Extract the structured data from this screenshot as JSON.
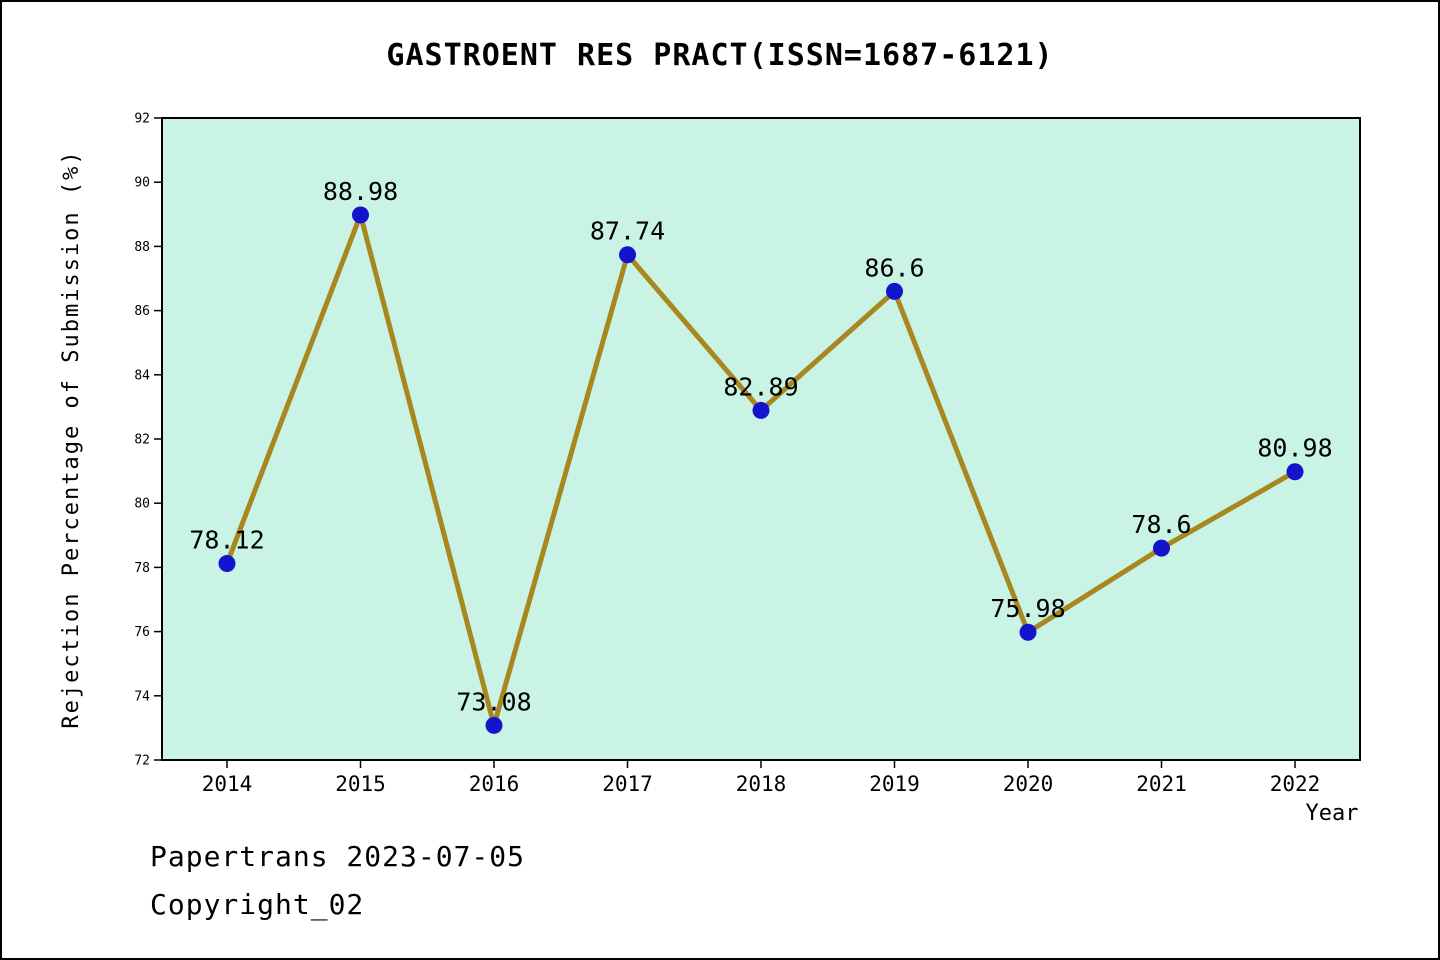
{
  "title": "GASTROENT RES PRACT(ISSN=1687-6121)",
  "footer": {
    "line1": "Papertrans 2023-07-05",
    "line2": "Copyright_02"
  },
  "chart_data": {
    "type": "line",
    "title": "GASTROENT RES PRACT(ISSN=1687-6121)",
    "xlabel": "Year",
    "ylabel": "Rejection Percentage of Submission (%)",
    "categories": [
      "2014",
      "2015",
      "2016",
      "2017",
      "2018",
      "2019",
      "2020",
      "2021",
      "2022"
    ],
    "values": [
      78.12,
      88.98,
      73.08,
      87.74,
      82.89,
      86.6,
      75.98,
      78.6,
      80.98
    ],
    "point_labels": [
      "78.12",
      "88.98",
      "73.08",
      "87.74",
      "82.89",
      "86.6",
      "75.98",
      "78.6",
      "80.98"
    ],
    "ylim": [
      72,
      92
    ],
    "ytick_step": 2,
    "yticks": [
      "72",
      "74",
      "76",
      "78",
      "80",
      "82",
      "84",
      "86",
      "88",
      "90",
      "92"
    ],
    "grid": false,
    "legend": "none",
    "colors": {
      "line": "#a8871f",
      "marker": "#1414cc",
      "plot_bg": "#c9f3e5",
      "axis": "#000000",
      "text": "#000000"
    }
  }
}
